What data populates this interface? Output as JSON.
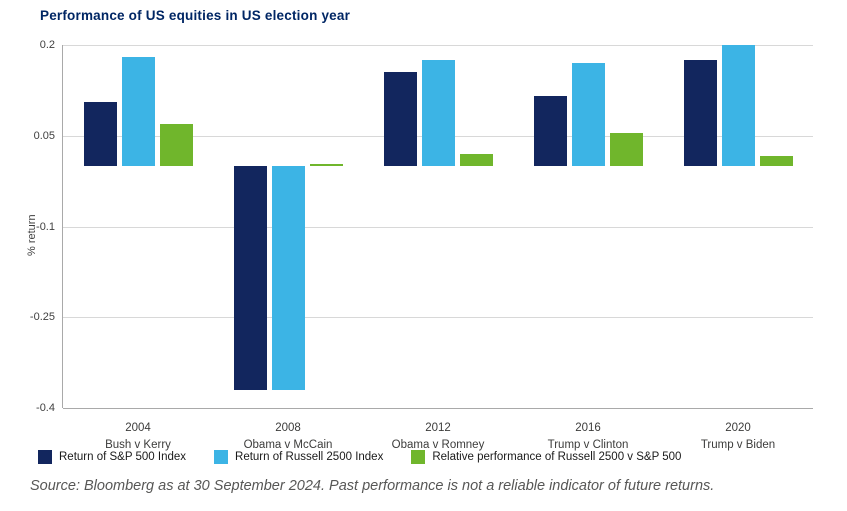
{
  "title": "Performance of US equities in US election year",
  "source_note": "Source: Bloomberg as at 30 September 2024. Past performance is not a reliable indicator of future returns.",
  "colors": {
    "title": "#002664",
    "sp500": "#12265e",
    "russell": "#3cb4e5",
    "relative": "#70b62c",
    "grid": "#d8d8d8",
    "axis": "#a9a9a9",
    "tick_text": "#3f3f3f",
    "legend_text": "#1a1a1a",
    "source_text": "#575756"
  },
  "chart_data": {
    "type": "bar",
    "title": "Performance of US equities in US election year",
    "xlabel": "",
    "ylabel": "% return",
    "ylim": [
      -0.4,
      0.2
    ],
    "yticks": [
      0.2,
      0.05,
      -0.1,
      -0.25,
      -0.4
    ],
    "grid": true,
    "legend_position": "bottom",
    "categories": [
      {
        "year": "2004",
        "matchup": "Bush v Kerry"
      },
      {
        "year": "2008",
        "matchup": "Obama v McCain"
      },
      {
        "year": "2012",
        "matchup": "Obama v Romney"
      },
      {
        "year": "2016",
        "matchup": "Trump v Clinton"
      },
      {
        "year": "2020",
        "matchup": "Trump v Biden"
      }
    ],
    "series": [
      {
        "name": "Return of S&P 500 Index",
        "color_key": "sp500",
        "values": [
          0.105,
          -0.37,
          0.155,
          0.115,
          0.175
        ]
      },
      {
        "name": "Return of Russell 2500 Index",
        "color_key": "russell",
        "values": [
          0.18,
          -0.37,
          0.175,
          0.17,
          0.2
        ]
      },
      {
        "name": "Relative performance of Russell 2500 v S&P 500",
        "color_key": "relative",
        "values": [
          0.07,
          0.003,
          0.02,
          0.055,
          0.016
        ]
      }
    ]
  }
}
